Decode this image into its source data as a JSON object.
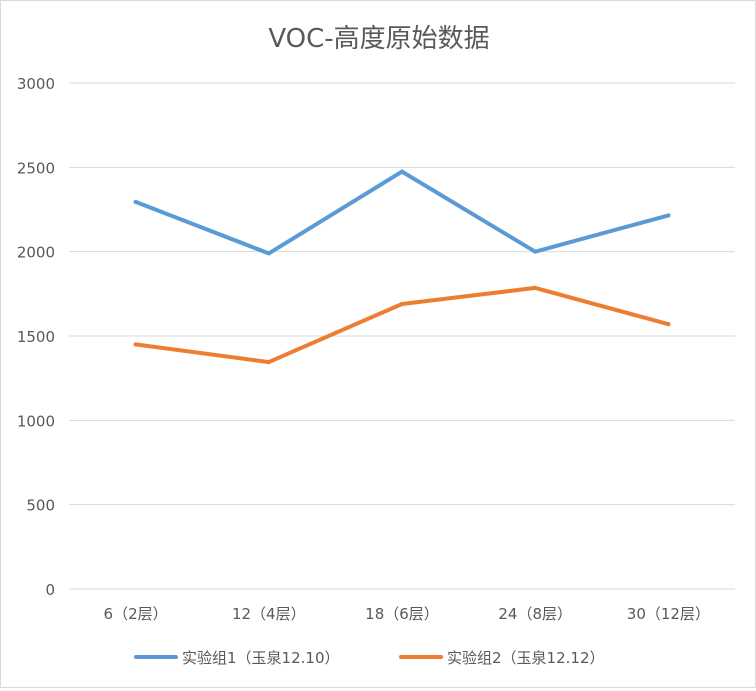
{
  "chart_data": {
    "type": "line",
    "title": "VOC-高度原始数据",
    "xlabel": "",
    "ylabel": "",
    "categories": [
      "6（2层）",
      "12（4层）",
      "18（6层）",
      "24（8层）",
      "30（12层）"
    ],
    "series": [
      {
        "name": "实验组1（玉泉12.10）",
        "color": "#5b9bd5",
        "values": [
          2295,
          1990,
          2475,
          2000,
          2215
        ]
      },
      {
        "name": "实验组2（玉泉12.12）",
        "color": "#ed7d31",
        "values": [
          1450,
          1345,
          1690,
          1785,
          1570
        ]
      }
    ],
    "ylim": [
      0,
      3000
    ],
    "yticks": [
      "0",
      "500",
      "1000",
      "1500",
      "2000",
      "2500",
      "3000"
    ],
    "grid": true,
    "legend": "bottom"
  }
}
